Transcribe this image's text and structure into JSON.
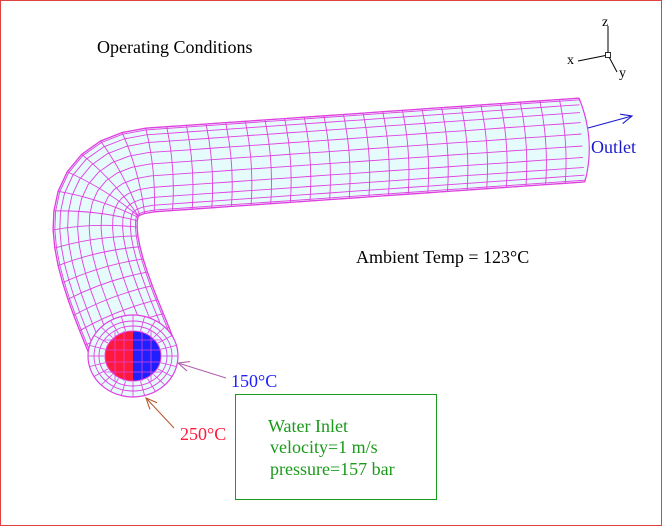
{
  "title": "Operating Conditions",
  "ambient_label": "Ambient Temp = 123°C",
  "outlet_label": "Outlet",
  "cold_temp_label": "150°C",
  "hot_temp_label": "250°C",
  "inlet": {
    "title": "Water Inlet",
    "velocity": "velocity=1 m/s",
    "pressure": "pressure=157 bar"
  },
  "axes": {
    "z": "z",
    "x": "x",
    "y": "y"
  },
  "colors": {
    "mesh": "#e040e0",
    "pipe_fill": "#e6fbfb",
    "hot": "#ff1a3c",
    "cold": "#2020ff",
    "outlet": "#1a1acc",
    "inlet_text": "#1a9a1a",
    "frame": "#e04040",
    "arrow_cold": "#b060b0",
    "arrow_hot": "#b85a30"
  }
}
